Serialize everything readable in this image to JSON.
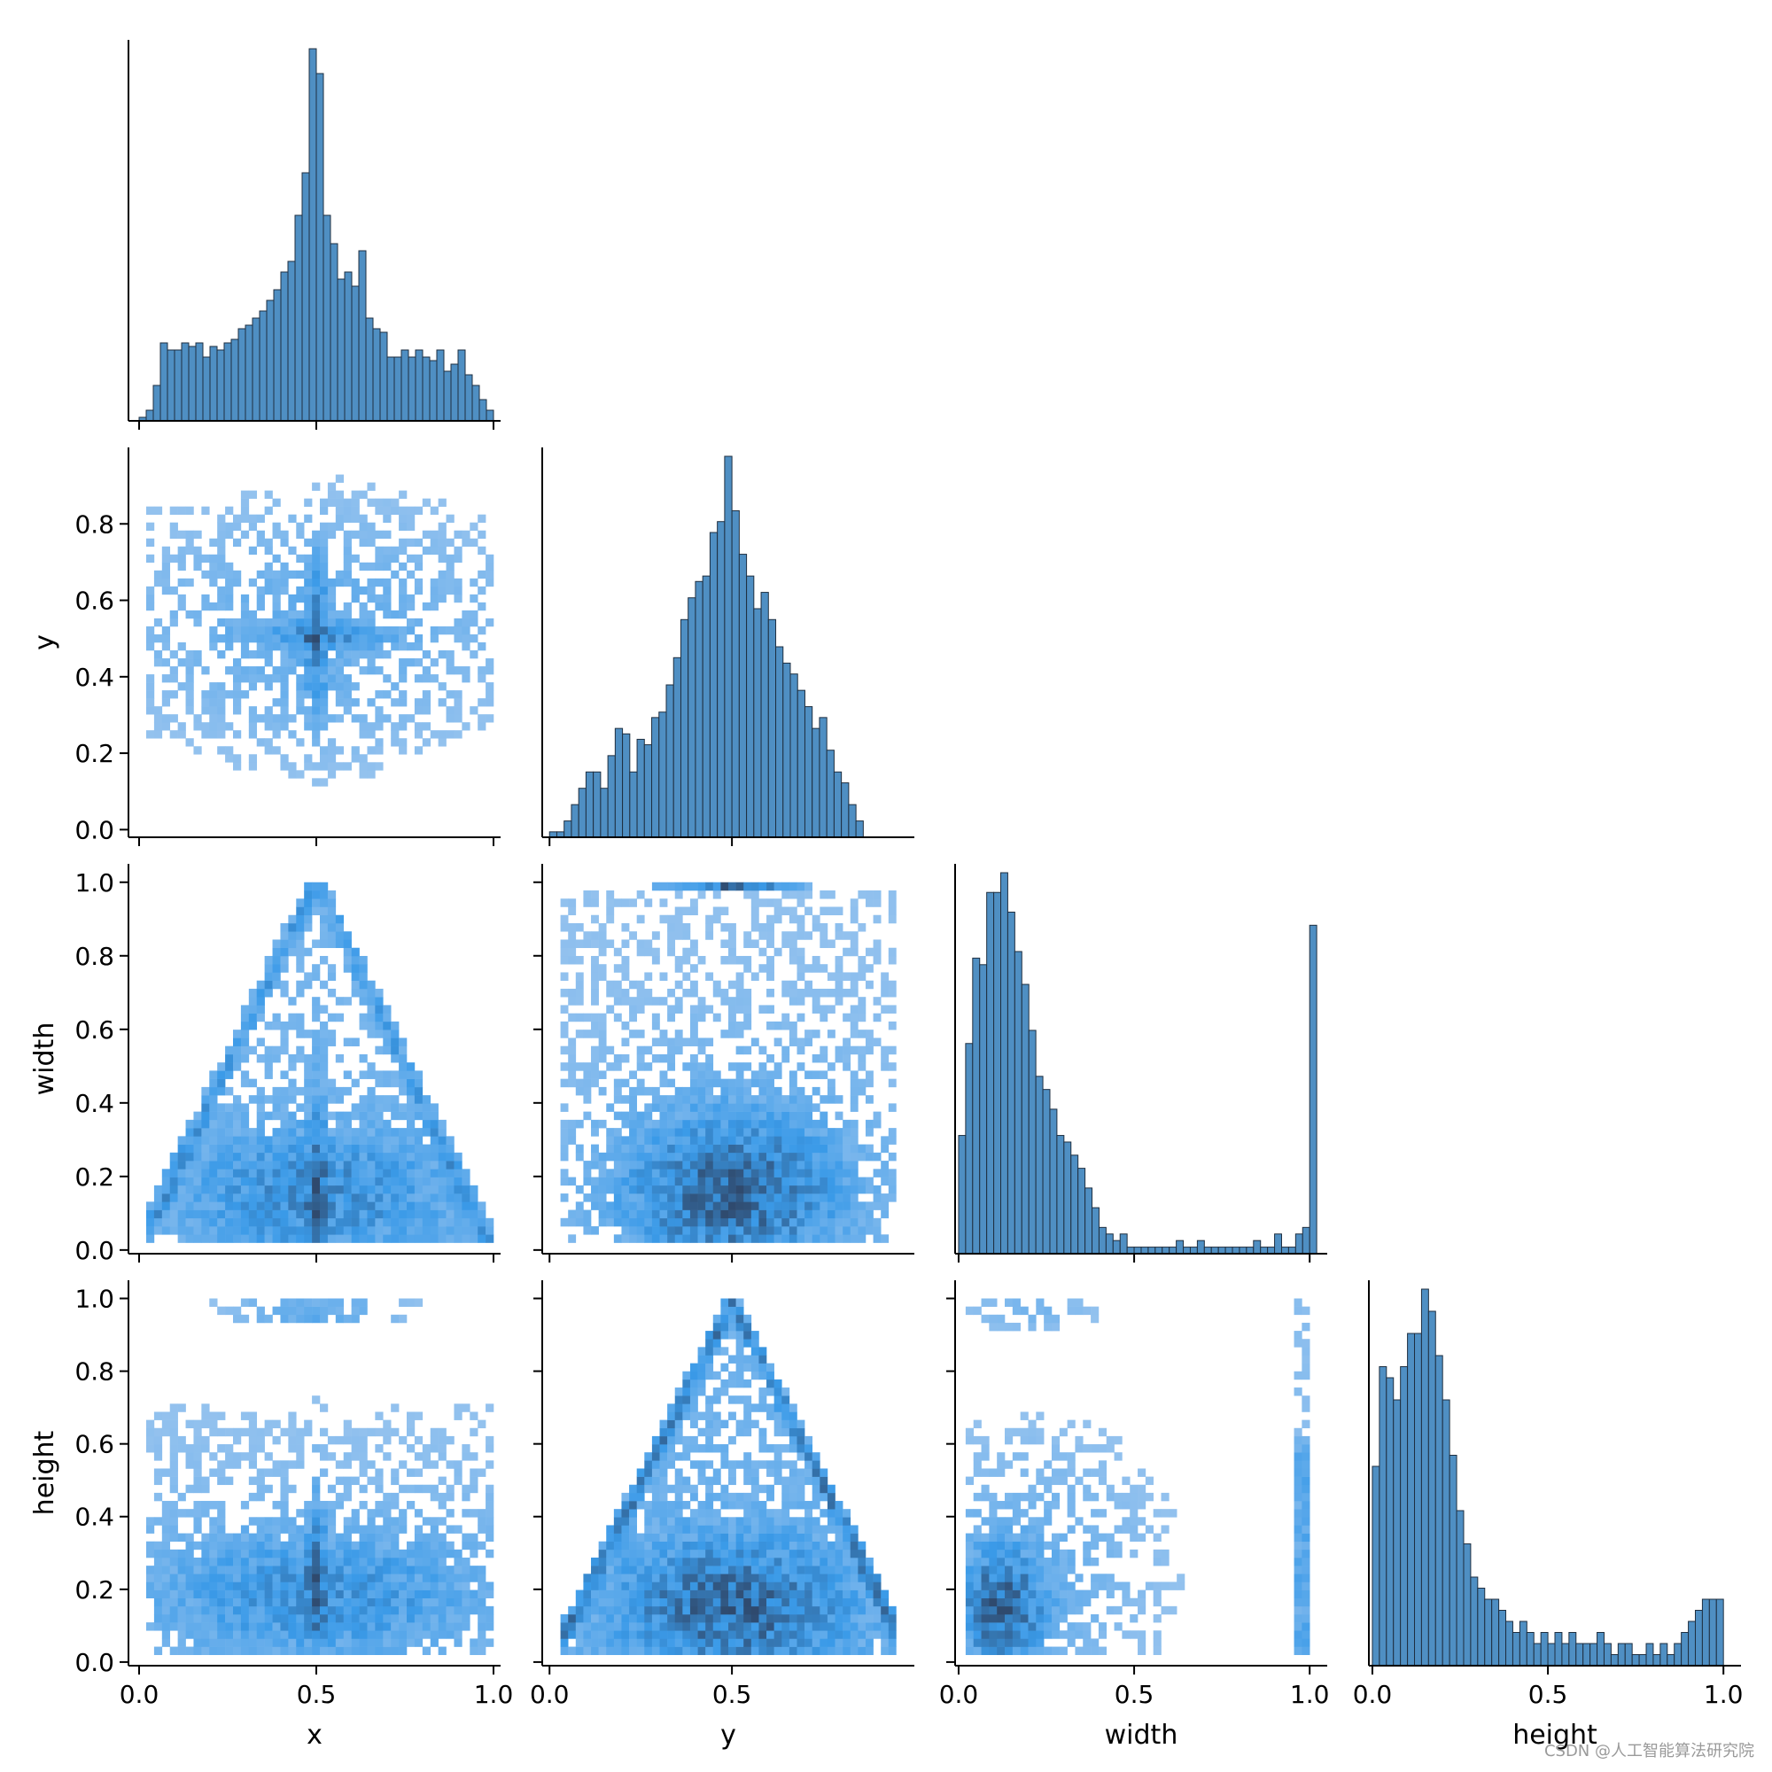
{
  "watermark": "CSDN @人工智能算法研究院",
  "chart_data": {
    "type": "pairplot",
    "variables": [
      "x",
      "y",
      "width",
      "height"
    ],
    "labels": {
      "x": "x",
      "y": "y",
      "width": "width",
      "height": "height"
    },
    "corner": true,
    "grid": false,
    "colors": {
      "hist_fill": "#4f8fc3",
      "hist_edge": "#1f2f40",
      "heat_low": "#a8cbf0",
      "heat_mid": "#3a9ae8",
      "heat_high": "#2f4a6e"
    },
    "limits": {
      "x": [
        -0.03,
        1.02
      ],
      "y": [
        -0.02,
        1.0
      ],
      "width": [
        -0.01,
        1.05
      ],
      "height": [
        -0.01,
        1.05
      ]
    },
    "ticks": {
      "x": {
        "values": [
          0.0,
          0.5,
          1.0
        ],
        "labels": [
          "0.0",
          "0.5",
          "1.0"
        ]
      },
      "y": {
        "values": [
          0.0,
          0.2,
          0.4,
          0.6,
          0.8
        ],
        "labels": [
          "0.0",
          "0.2",
          "0.4",
          "0.6",
          "0.8"
        ],
        "bottom_values": [
          0.0,
          0.5
        ],
        "bottom_labels": [
          "0.0",
          "0.5"
        ]
      },
      "width": {
        "values": [
          0.0,
          0.2,
          0.4,
          0.6,
          0.8,
          1.0
        ],
        "labels": [
          "0.0",
          "0.2",
          "0.4",
          "0.6",
          "0.8",
          "1.0"
        ],
        "bottom_values": [
          0.0,
          0.5,
          1.0
        ],
        "bottom_labels": [
          "0.0",
          "0.5",
          "1.0"
        ]
      },
      "height": {
        "values": [
          0.0,
          0.2,
          0.4,
          0.6,
          0.8,
          1.0
        ],
        "labels": [
          "0.0",
          "0.2",
          "0.4",
          "0.6",
          "0.8",
          "1.0"
        ],
        "bottom_values": [
          0.0,
          0.5,
          1.0
        ],
        "bottom_labels": [
          "0.0",
          "0.5",
          "1.0"
        ]
      }
    },
    "histograms": {
      "x": {
        "bin_start": 0.0,
        "bin_width": 0.02,
        "counts": [
          1,
          3,
          10,
          22,
          20,
          20,
          22,
          21,
          22,
          18,
          21,
          20,
          22,
          23,
          26,
          27,
          29,
          31,
          34,
          37,
          42,
          45,
          58,
          70,
          105,
          98,
          58,
          50,
          40,
          42,
          38,
          48,
          29,
          26,
          25,
          18,
          18,
          20,
          18,
          20,
          18,
          17,
          20,
          14,
          16,
          20,
          13,
          10,
          6,
          3
        ]
      },
      "y": {
        "bin_start": 0.0,
        "bin_width": 0.02,
        "counts": [
          1,
          1,
          3,
          6,
          9,
          12,
          12,
          9,
          15,
          20,
          19,
          12,
          18,
          17,
          22,
          23,
          28,
          33,
          40,
          44,
          47,
          48,
          56,
          58,
          70,
          60,
          52,
          48,
          42,
          45,
          40,
          35,
          32,
          30,
          27,
          24,
          20,
          22,
          16,
          12,
          10,
          6,
          3
        ]
      },
      "width": {
        "bin_start": 0.0,
        "bin_width": 0.02,
        "counts": [
          18,
          32,
          45,
          44,
          55,
          55,
          58,
          52,
          46,
          41,
          34,
          27,
          25,
          22,
          18,
          17,
          15,
          13,
          10,
          7,
          4,
          3,
          2,
          3,
          1,
          1,
          1,
          1,
          1,
          1,
          1,
          2,
          1,
          1,
          2,
          1,
          1,
          1,
          1,
          1,
          1,
          1,
          2,
          1,
          1,
          3,
          1,
          1,
          3,
          4,
          50
        ]
      },
      "height": {
        "bin_start": 0.0,
        "bin_width": 0.02,
        "counts": [
          18,
          27,
          26,
          24,
          27,
          30,
          30,
          34,
          32,
          28,
          24,
          19,
          14,
          11,
          8,
          7,
          6,
          6,
          5,
          4,
          3,
          4,
          3,
          2,
          3,
          2,
          3,
          2,
          3,
          2,
          2,
          2,
          3,
          2,
          1,
          2,
          2,
          1,
          1,
          2,
          1,
          2,
          1,
          2,
          3,
          4,
          5,
          6,
          6,
          6
        ]
      }
    },
    "heatmaps": {
      "y_vs_x": {
        "bins": [
          44,
          44
        ],
        "description": "dense band across x, max near x=0.5, y=0.5"
      },
      "width_vs_x": {
        "bins": [
          44,
          44
        ],
        "description": "triangular shape; width max approx 2*min(x,1-x)"
      },
      "width_vs_y": {
        "bins": [
          44,
          44
        ],
        "description": "dense at width<0.3, row at width=1.0"
      },
      "height_vs_x": {
        "bins": [
          44,
          44
        ],
        "description": "dense at height<0.35, row near height=1.0"
      },
      "height_vs_y": {
        "bins": [
          44,
          44
        ],
        "description": "triangular shape with peak at y=0.5"
      },
      "height_vs_width": {
        "bins": [
          44,
          44
        ],
        "description": "dense near small width/height; column at width=1.0"
      }
    }
  }
}
